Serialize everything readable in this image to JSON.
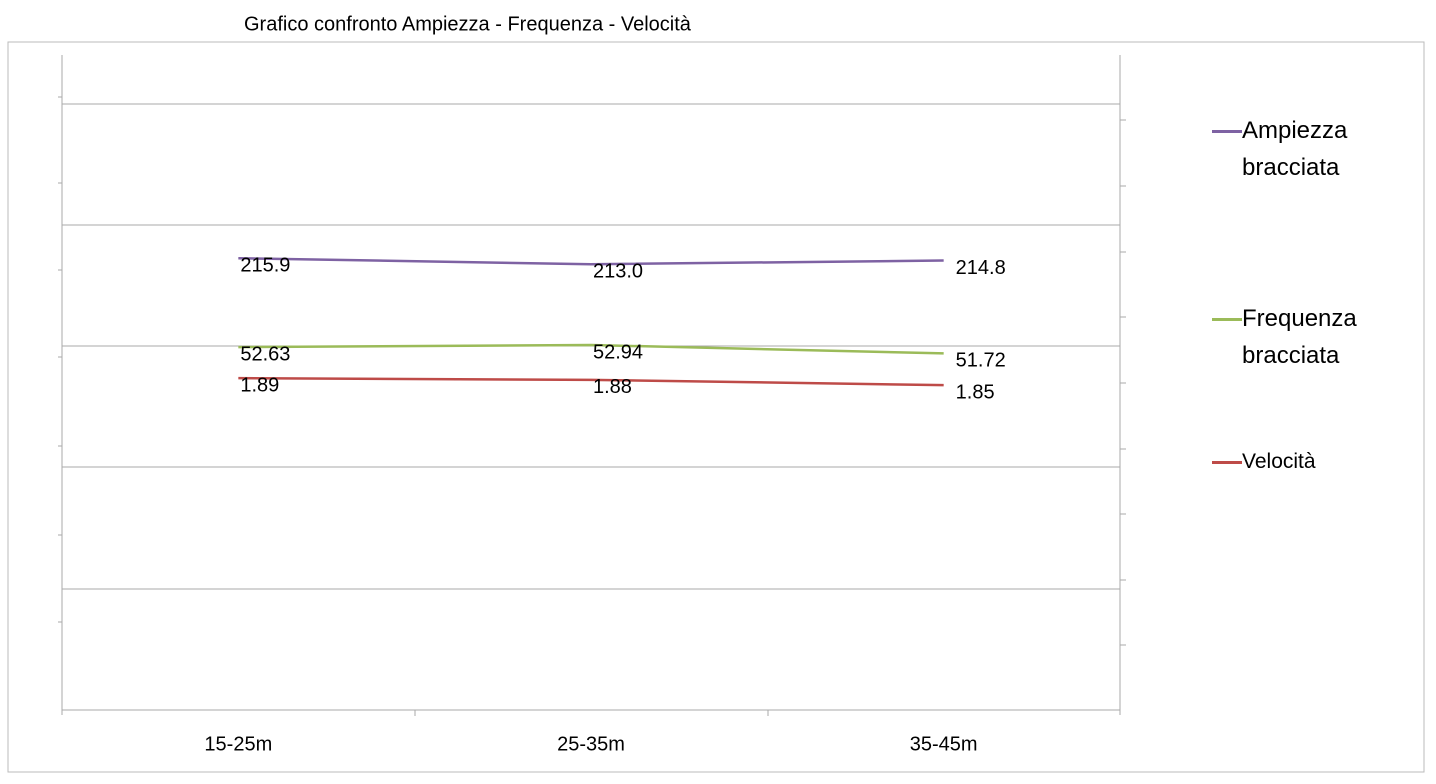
{
  "chart_data": {
    "type": "line",
    "title": "Grafico confronto     Ampiezza - Frequenza - Velocità",
    "categories": [
      "15-25m",
      "25-35m",
      "35-45m"
    ],
    "series": [
      {
        "name": "Ampiezza bracciata",
        "color": "#7e62a3",
        "values": [
          215.9,
          213.0,
          214.8
        ],
        "value_labels": [
          "215.9",
          "213.0",
          "214.8"
        ],
        "ylim": [
          0,
          313
        ]
      },
      {
        "name": "Frequenza bracciata",
        "color": "#9bbb59",
        "values": [
          52.63,
          52.94,
          51.72
        ],
        "ylim": [
          0,
          95
        ]
      },
      {
        "name": "Velocità",
        "color": "#be4b48",
        "values": [
          1.89,
          1.88,
          1.85
        ],
        "ylim": [
          0,
          3.73
        ]
      }
    ],
    "grid": true
  }
}
